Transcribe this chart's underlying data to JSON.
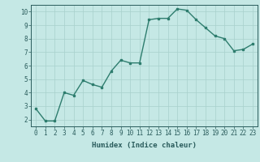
{
  "x": [
    0,
    1,
    2,
    3,
    4,
    5,
    6,
    7,
    8,
    9,
    10,
    11,
    12,
    13,
    14,
    15,
    16,
    17,
    18,
    19,
    20,
    21,
    22,
    23
  ],
  "y": [
    2.8,
    1.9,
    1.9,
    4.0,
    3.8,
    4.9,
    4.6,
    4.4,
    5.6,
    6.4,
    6.2,
    6.2,
    9.4,
    9.5,
    9.5,
    10.2,
    10.1,
    9.4,
    8.8,
    8.2,
    8.0,
    7.1,
    7.2,
    7.6
  ],
  "line_color": "#2e7d6e",
  "marker": "s",
  "marker_size": 2.0,
  "background_color": "#c5e8e5",
  "grid_color": "#a8d0cc",
  "xlabel": "Humidex (Indice chaleur)",
  "xlim": [
    -0.5,
    23.5
  ],
  "ylim": [
    1.5,
    10.5
  ],
  "xticks": [
    0,
    1,
    2,
    3,
    4,
    5,
    6,
    7,
    8,
    9,
    10,
    11,
    12,
    13,
    14,
    15,
    16,
    17,
    18,
    19,
    20,
    21,
    22,
    23
  ],
  "yticks": [
    2,
    3,
    4,
    5,
    6,
    7,
    8,
    9,
    10
  ],
  "xlabel_fontsize": 6.5,
  "tick_fontsize": 5.5,
  "axis_color": "#2a5c5c",
  "linewidth": 1.0
}
